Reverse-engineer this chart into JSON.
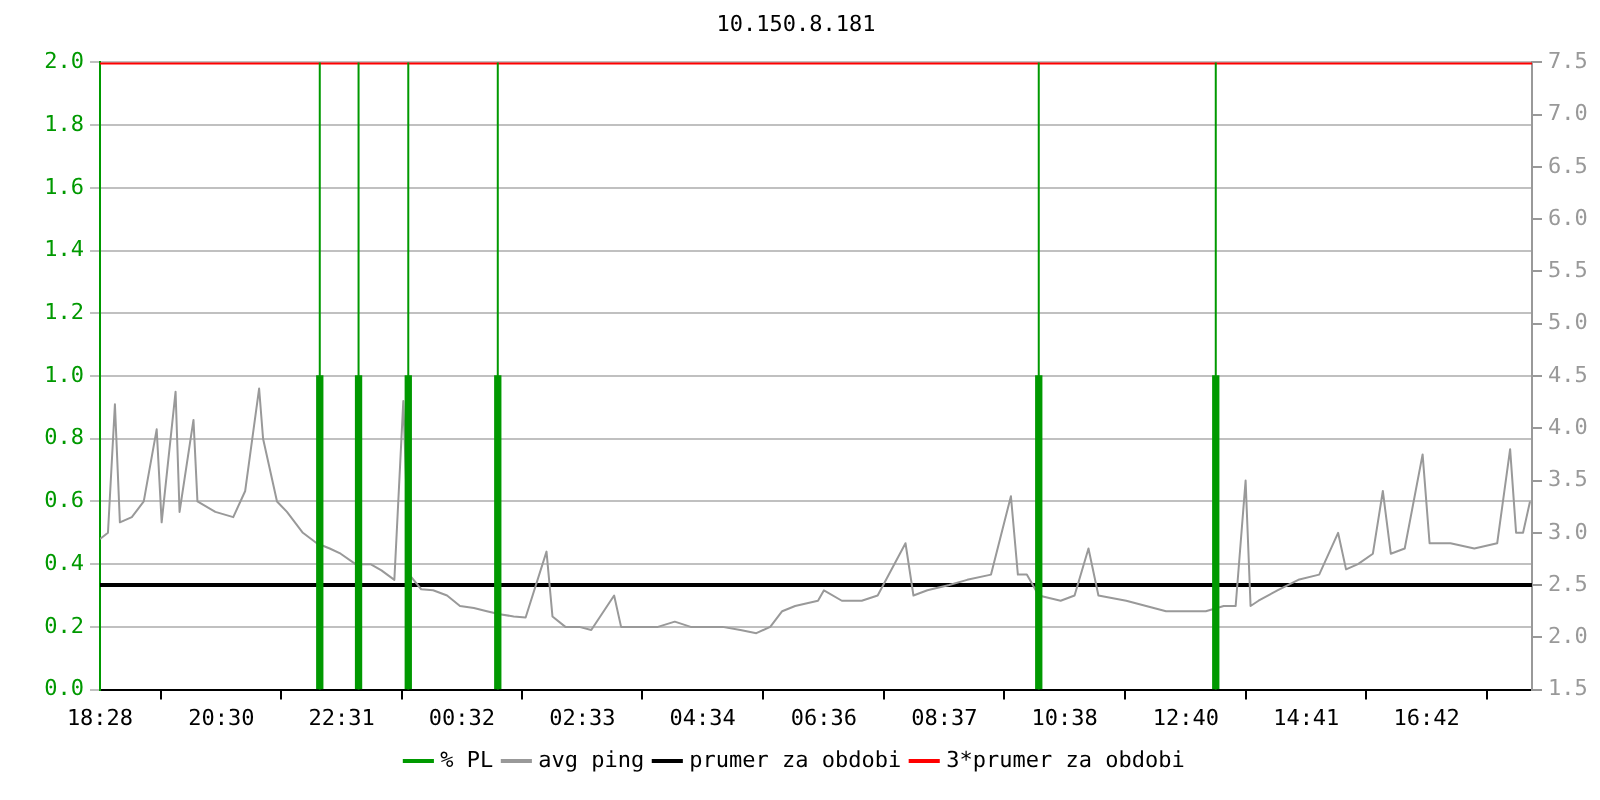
{
  "chart_data": {
    "type": "line",
    "title": "10.150.8.181",
    "xlim": [
      "--01-01T18:28",
      "--01-02T18:28"
    ],
    "xticks": [
      {
        "value": "--01-01T18:28",
        "label": "18:28"
      },
      {
        "value": "--01-01T20:30",
        "label": "20:30"
      },
      {
        "value": "--01-01T22:31",
        "label": "22:31"
      },
      {
        "value": "--01-02T00:32",
        "label": "00:32"
      },
      {
        "value": "--01-02T02:33",
        "label": "02:33"
      },
      {
        "value": "--01-02T04:34",
        "label": "04:34"
      },
      {
        "value": "--01-02T06:36",
        "label": "06:36"
      },
      {
        "value": "--01-02T08:37",
        "label": "08:37"
      },
      {
        "value": "--01-02T10:38",
        "label": "10:38"
      },
      {
        "value": "--01-02T12:40",
        "label": "12:40"
      },
      {
        "value": "--01-02T14:41",
        "label": "14:41"
      },
      {
        "value": "--01-02T16:42",
        "label": "16:42"
      }
    ],
    "ylim": [
      0,
      2
    ],
    "yticks": [
      {
        "value": 0,
        "label": "0.0"
      },
      0.2,
      0.4,
      0.6,
      0.8,
      {
        "value": 1,
        "label": "1.0"
      },
      1.2,
      1.4,
      1.6,
      1.8,
      {
        "value": 2,
        "label": "2.0"
      }
    ],
    "y2lim": [
      1.5,
      7.5
    ],
    "y2ticks": [
      1.5,
      {
        "value": 2,
        "label": "2.0"
      },
      2.5,
      {
        "value": 3,
        "label": "3.0"
      },
      3.5,
      {
        "value": 4,
        "label": "4.0"
      },
      4.5,
      {
        "value": 5,
        "label": "5.0"
      },
      5.5,
      {
        "value": 6,
        "label": "6.0"
      },
      6.5,
      {
        "value": 7,
        "label": "7.0"
      },
      7.5
    ],
    "grid": "y",
    "legend": "bottom",
    "marker": "none",
    "series": [
      {
        "name": "% PL",
        "type": "bar",
        "color": "#009900",
        "x": [
          "--01-01T22:09",
          "--01-01T22:48",
          "--01-01T23:38",
          "--01-02T01:08",
          "--01-02T10:12",
          "--01-02T13:10"
        ],
        "values": [
          1,
          1,
          1,
          1,
          1,
          1
        ]
      },
      {
        "name": "avg ping",
        "color": "#999999",
        "axis": "y2",
        "x": [
          "--01-01T18:28",
          "--01-01T18:36",
          "--01-01T18:43",
          "--01-01T18:48",
          "--01-01T19:00",
          "--01-01T19:12",
          "--01-01T19:25",
          "--01-01T19:30",
          "--01-01T19:44",
          "--01-01T19:48",
          "--01-01T20:02",
          "--01-01T20:06",
          "--01-01T20:24",
          "--01-01T20:42",
          "--01-01T20:54",
          "--01-01T21:08",
          "--01-01T21:12",
          "--01-01T21:26",
          "--01-01T21:36",
          "--01-01T21:52",
          "--01-01T22:06",
          "--01-01T22:19",
          "--01-01T22:30",
          "--01-01T22:45",
          "--01-01T23:00",
          "--01-01T23:11",
          "--01-01T23:24",
          "--01-01T23:33",
          "--01-01T23:39",
          "--01-01T23:51",
          "--01-02T00:03",
          "--01-02T00:17",
          "--01-02T00:30",
          "--01-02T00:44",
          "--01-02T00:57",
          "--01-02T01:10",
          "--01-02T01:24",
          "--01-02T01:36",
          "--01-02T01:57",
          "--01-02T02:03",
          "--01-02T02:16",
          "--01-02T02:30",
          "--01-02T02:42",
          "--01-02T03:05",
          "--01-02T03:12",
          "--01-02T03:30",
          "--01-02T03:49",
          "--01-02T04:06",
          "--01-02T04:22",
          "--01-02T04:36",
          "--01-02T04:54",
          "--01-02T05:12",
          "--01-02T05:28",
          "--01-02T05:42",
          "--01-02T05:54",
          "--01-02T06:07",
          "--01-02T06:30",
          "--01-02T06:36",
          "--01-02T06:54",
          "--01-02T07:14",
          "--01-02T07:30",
          "--01-02T07:58",
          "--01-02T08:06",
          "--01-02T08:20",
          "--01-02T08:42",
          "--01-02T09:00",
          "--01-02T09:24",
          "--01-02T09:44",
          "--01-02T09:51",
          "--01-02T10:00",
          "--01-02T10:12",
          "--01-02T10:34",
          "--01-02T10:48",
          "--01-02T11:02",
          "--01-02T11:12",
          "--01-02T11:40",
          "--01-02T12:00",
          "--01-02T12:20",
          "--01-02T12:42",
          "--01-02T13:00",
          "--01-02T13:18",
          "--01-02T13:30",
          "--01-02T13:40",
          "--01-02T13:45",
          "--01-02T13:53",
          "--01-02T14:12",
          "--01-02T14:33",
          "--01-02T14:54",
          "--01-02T15:13",
          "--01-02T15:21",
          "--01-02T15:33",
          "--01-02T15:48",
          "--01-02T15:58",
          "--01-02T16:06",
          "--01-02T16:20",
          "--01-02T16:38",
          "--01-02T16:45",
          "--01-02T17:06",
          "--01-02T17:30",
          "--01-02T17:53",
          "--01-02T18:06",
          "--01-02T18:12",
          "--01-02T18:19",
          "--01-02T18:26"
        ],
        "values": [
          2.94,
          3.0,
          4.23,
          3.1,
          3.15,
          3.3,
          3.99,
          3.1,
          4.35,
          3.2,
          4.08,
          3.3,
          3.2,
          3.15,
          3.4,
          4.38,
          3.9,
          3.3,
          3.2,
          3.0,
          2.9,
          2.85,
          2.8,
          2.7,
          2.7,
          2.64,
          2.55,
          4.26,
          2.6,
          2.46,
          2.45,
          2.4,
          2.3,
          2.28,
          2.25,
          2.22,
          2.2,
          2.19,
          2.82,
          2.2,
          2.1,
          2.1,
          2.07,
          2.4,
          2.1,
          2.1,
          2.1,
          2.15,
          2.1,
          2.1,
          2.1,
          2.07,
          2.04,
          2.1,
          2.25,
          2.3,
          2.35,
          2.45,
          2.35,
          2.35,
          2.4,
          2.9,
          2.4,
          2.45,
          2.5,
          2.55,
          2.6,
          3.35,
          2.6,
          2.6,
          2.4,
          2.35,
          2.4,
          2.85,
          2.4,
          2.35,
          2.3,
          2.25,
          2.25,
          2.25,
          2.3,
          2.3,
          3.5,
          2.3,
          2.35,
          2.45,
          2.55,
          2.6,
          3.0,
          2.65,
          2.7,
          2.8,
          3.4,
          2.8,
          2.85,
          3.75,
          2.9,
          2.9,
          2.85,
          2.9,
          3.8,
          3.0,
          3.0,
          3.3
        ]
      },
      {
        "name": "prumer za obdobi",
        "color": "#000000",
        "axis": "y2",
        "x": [
          "--01-01T18:28",
          "--01-02T18:28"
        ],
        "values": [
          2.5,
          2.5
        ]
      },
      {
        "name": "3*prumer za obdobi",
        "color": "#ff0000",
        "axis": "y2",
        "x": [
          "--01-01T18:28",
          "--01-02T18:28"
        ],
        "values": [
          7.5,
          7.5
        ]
      }
    ],
    "ref_lines": [
      {
        "axis": "x",
        "value": "--01-01T22:09",
        "color": "#009900"
      },
      {
        "axis": "x",
        "value": "--01-01T22:48",
        "color": "#009900"
      },
      {
        "axis": "x",
        "value": "--01-01T23:38",
        "color": "#009900"
      },
      {
        "axis": "x",
        "value": "--01-02T01:08",
        "color": "#009900"
      },
      {
        "axis": "x",
        "value": "--01-02T10:12",
        "color": "#009900"
      },
      {
        "axis": "x",
        "value": "--01-02T13:10",
        "color": "#009900"
      }
    ]
  }
}
